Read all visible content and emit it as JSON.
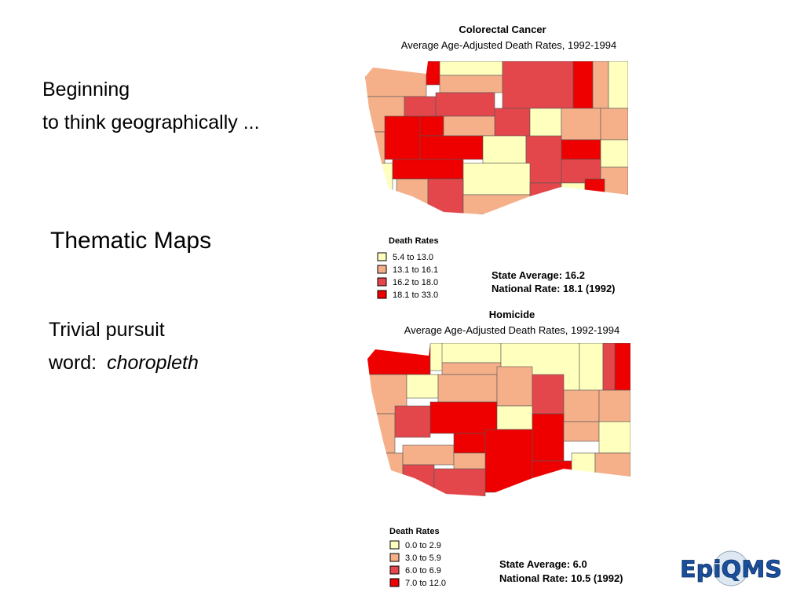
{
  "slide": {
    "heading": [
      "Beginning",
      "to think geographically ..."
    ],
    "section_title": "Thematic Maps",
    "trivia": {
      "line1": "Trivial pursuit",
      "prefix": "word: ",
      "term": "choropleth"
    }
  },
  "maps": [
    {
      "title": "Colorectal Cancer",
      "subtitle": "Average Age-Adjusted Death Rates, 1992-1994",
      "legend_title": "Death Rates",
      "legend": [
        "5.4 to 13.0",
        "13.1 to 16.1",
        "16.2 to 18.0",
        "18.1 to 33.0"
      ],
      "state_average": "State Average: 16.2",
      "national_rate": "National Rate: 18.1 (1992)"
    },
    {
      "title": "Homicide",
      "subtitle": "Average Age-Adjusted Death Rates, 1992-1994",
      "legend_title": "Death Rates",
      "legend": [
        "0.0 to 2.9",
        "3.0 to 5.9",
        "6.0 to 6.9",
        "7.0 to 12.0"
      ],
      "state_average": "State Average: 6.0",
      "national_rate": "National Rate: 10.5 (1992)"
    }
  ],
  "logo": "EpiQMS"
}
